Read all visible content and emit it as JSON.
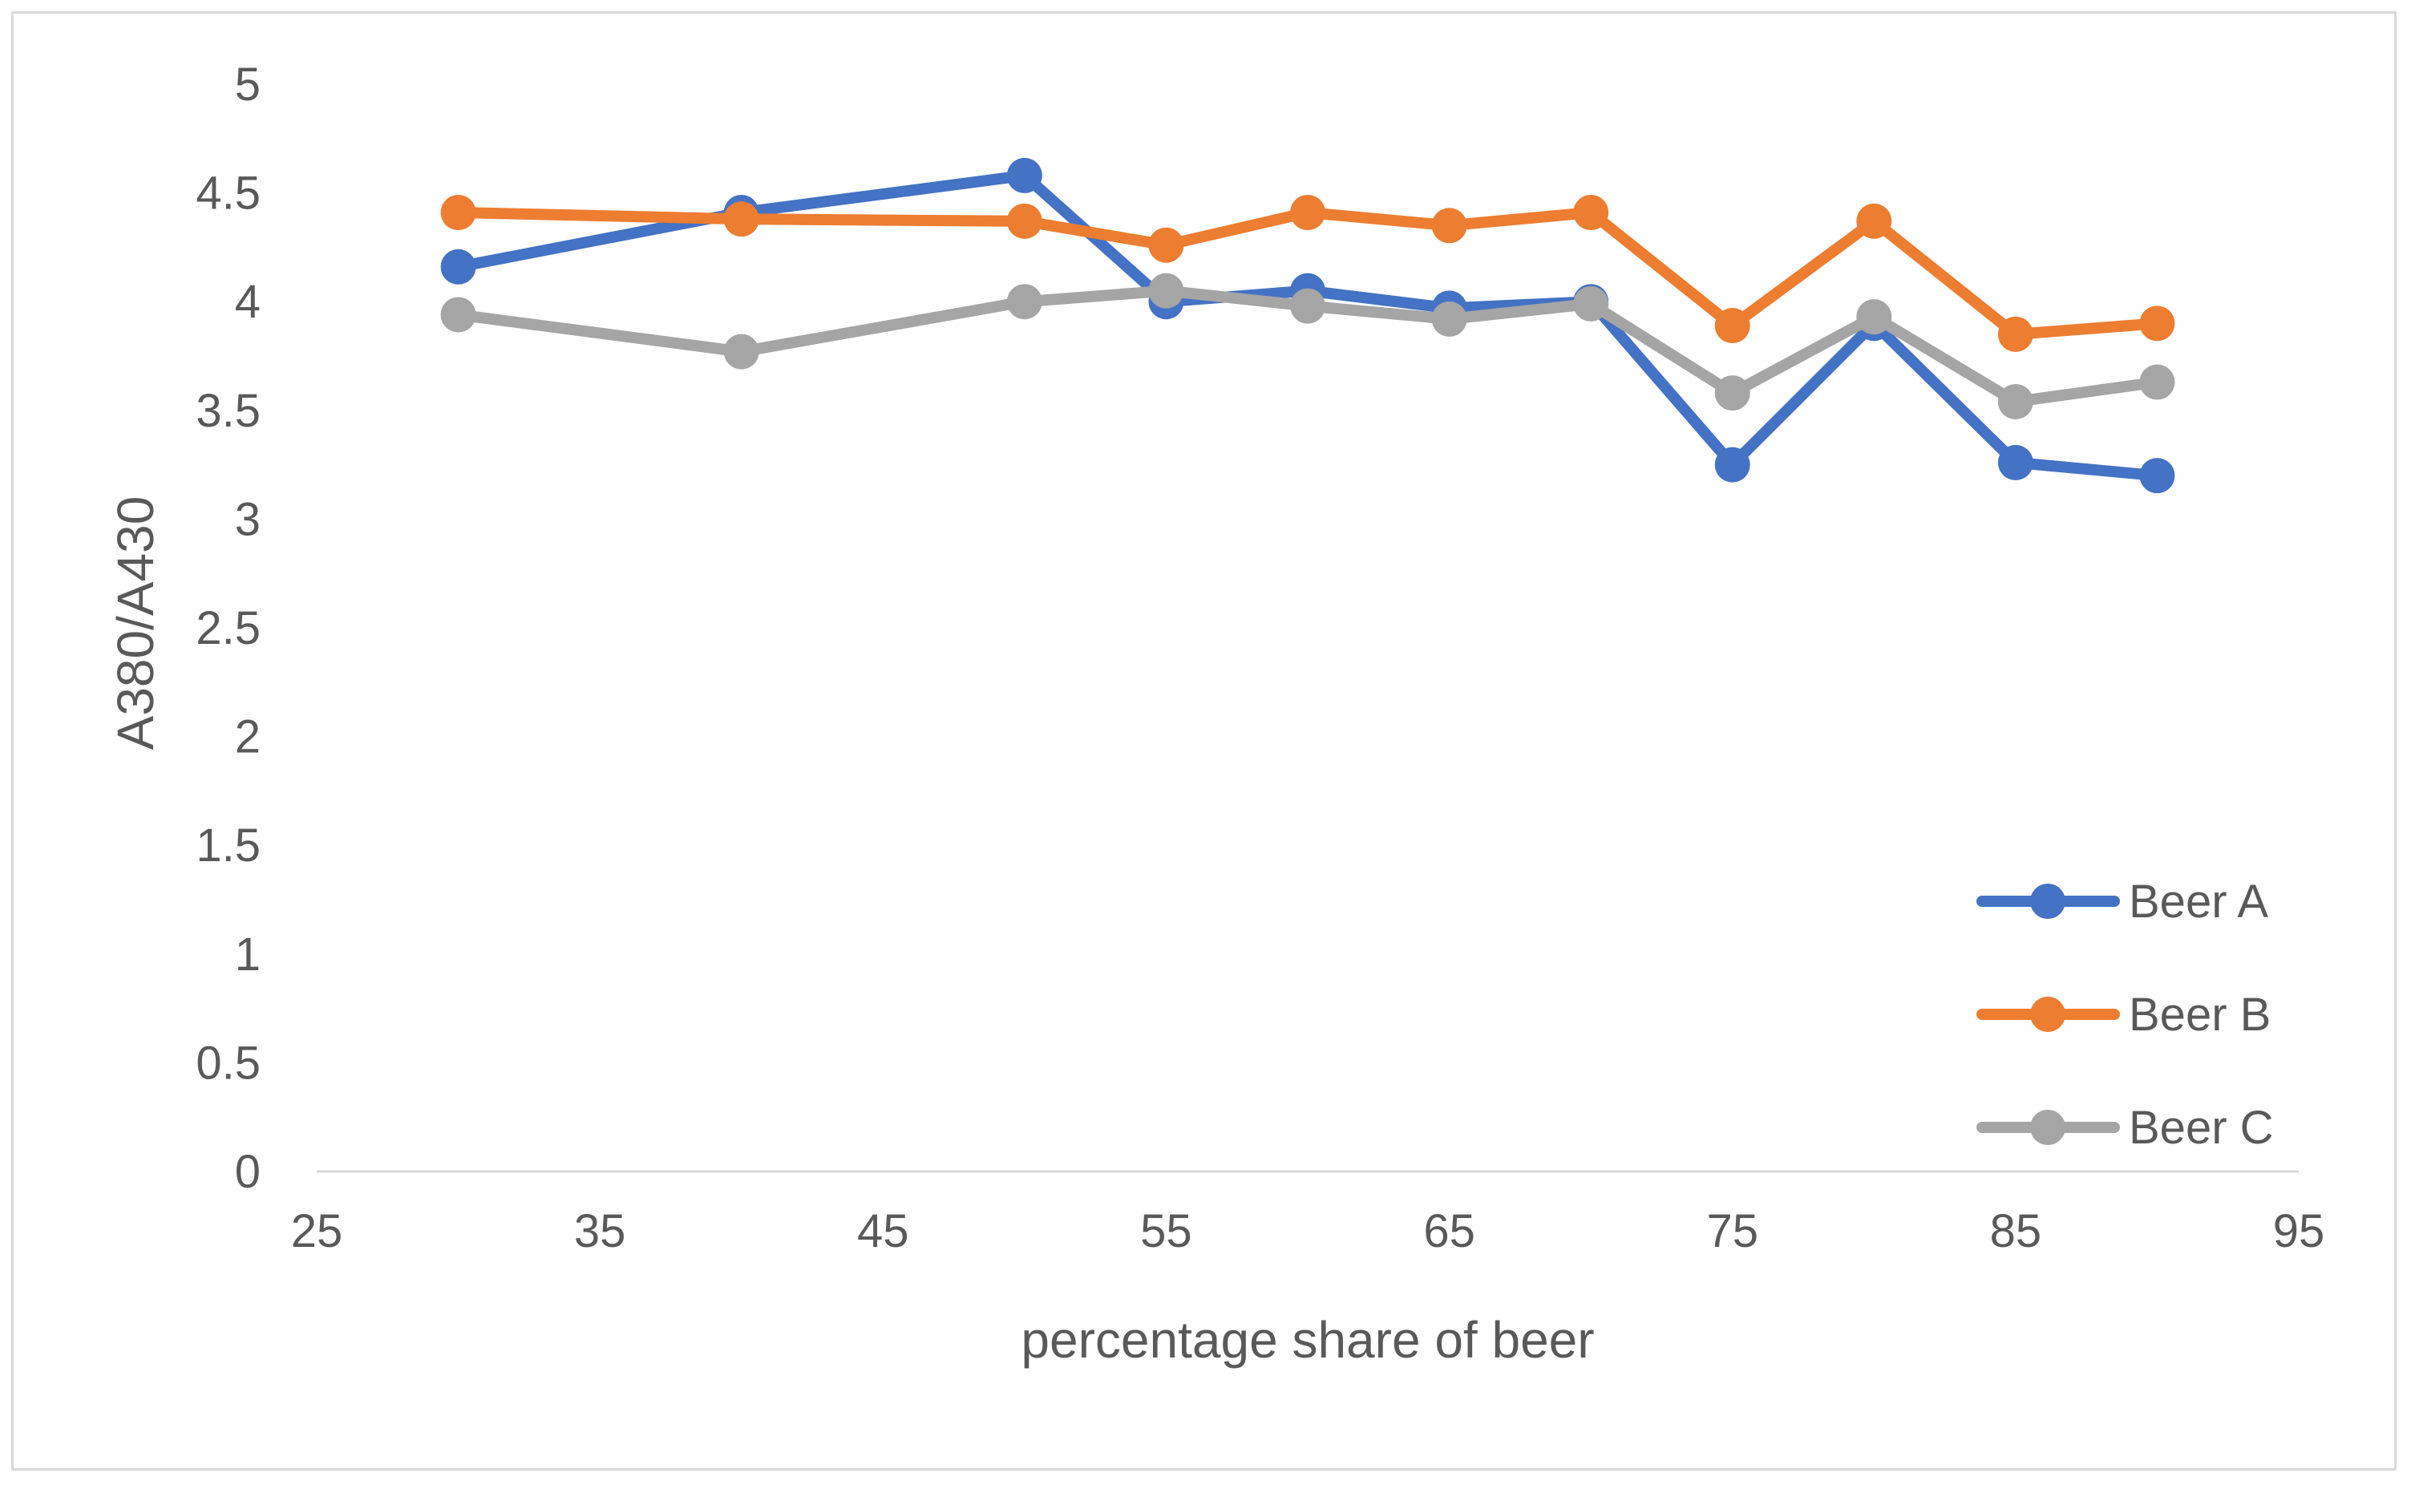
{
  "chart_data": {
    "type": "line",
    "title": "",
    "xlabel": "percentage share of beer",
    "ylabel": "A380/A430",
    "xlim": [
      25,
      95
    ],
    "ylim": [
      0,
      5
    ],
    "xticks": [
      25,
      35,
      45,
      55,
      65,
      75,
      85,
      95
    ],
    "yticks": [
      0,
      0.5,
      1,
      1.5,
      2,
      2.5,
      3,
      3.5,
      4,
      4.5,
      5
    ],
    "xtick_labels": [
      "25",
      "35",
      "45",
      "55",
      "65",
      "75",
      "85",
      "95"
    ],
    "ytick_labels": [
      "0",
      "0.5",
      "1",
      "1.5",
      "2",
      "2.5",
      "3",
      "3.5",
      "4",
      "4.5",
      "5"
    ],
    "grid": false,
    "legend_position": "bottom-right",
    "x": [
      30,
      40,
      50,
      55,
      60,
      65,
      70,
      75,
      80,
      85,
      90
    ],
    "series": [
      {
        "name": "Beer A",
        "color": "#4472c4",
        "values": [
          4.16,
          4.41,
          4.58,
          4.0,
          4.05,
          3.97,
          4.0,
          3.25,
          3.9,
          3.26,
          3.2
        ]
      },
      {
        "name": "Beer B",
        "color": "#ed7d31",
        "values": [
          4.41,
          4.38,
          4.37,
          4.26,
          4.41,
          4.35,
          4.41,
          3.89,
          4.37,
          3.85,
          3.9
        ]
      },
      {
        "name": "Beer C",
        "color": "#a5a5a5",
        "values": [
          3.94,
          3.77,
          4.0,
          4.05,
          3.98,
          3.92,
          3.99,
          3.58,
          3.93,
          3.54,
          3.63
        ]
      }
    ]
  }
}
